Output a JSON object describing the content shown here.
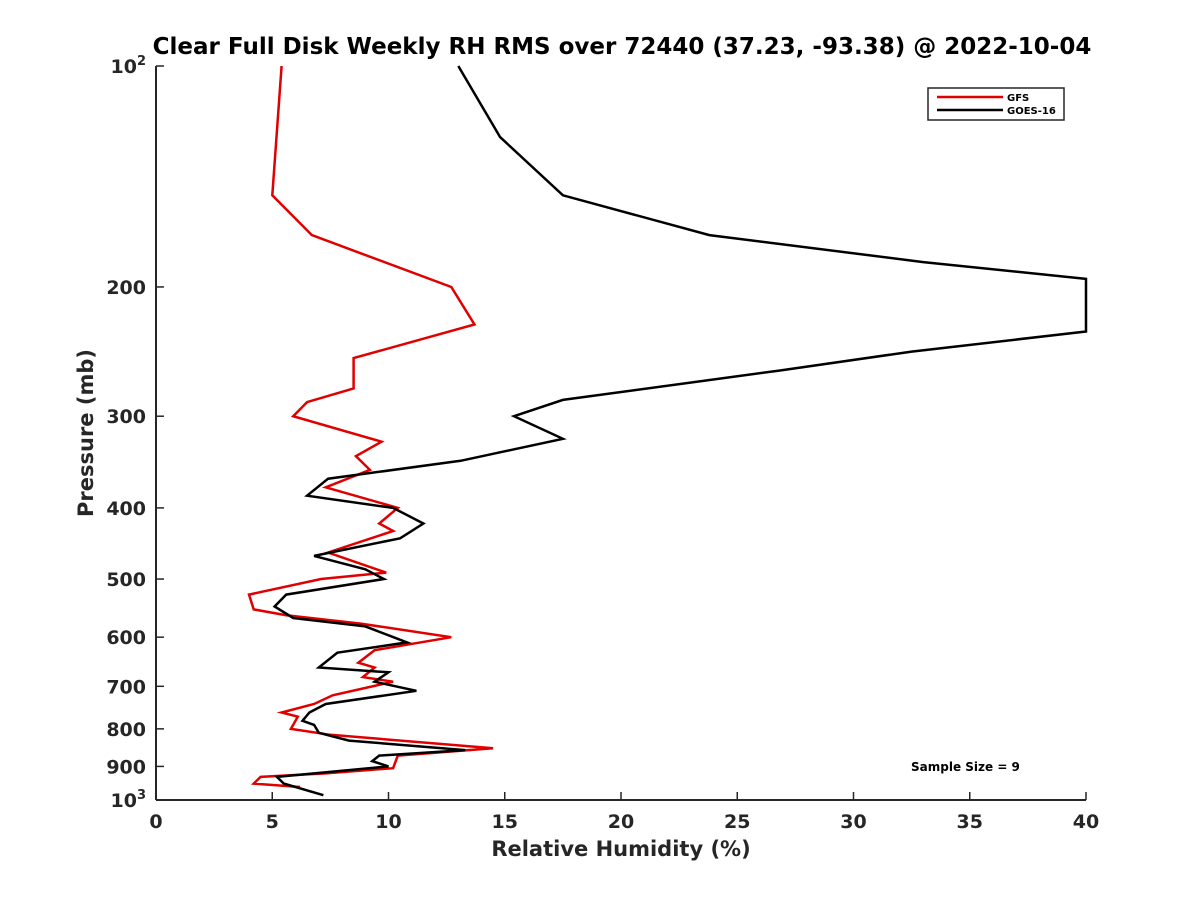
{
  "chart_data": {
    "type": "line",
    "title": "Clear Full Disk Weekly RH RMS over 72440 (37.23, -93.38) @ 2022-10-04",
    "xlabel": "Relative Humidity (%)",
    "ylabel": "Pressure (mb)",
    "xlim": [
      0,
      40
    ],
    "ylim": [
      100,
      1000
    ],
    "y_scale": "log",
    "y_reversed": true,
    "grid": false,
    "legend_position": "top-right",
    "x_ticks": [
      "0",
      "5",
      "10",
      "15",
      "20",
      "25",
      "30",
      "35",
      "40"
    ],
    "y_ticks": [
      {
        "value": 100,
        "base": "10",
        "exp": "2"
      },
      {
        "value": 200,
        "label": "200"
      },
      {
        "value": 300,
        "label": "300"
      },
      {
        "value": 400,
        "label": "400"
      },
      {
        "value": 500,
        "label": "500"
      },
      {
        "value": 600,
        "label": "600"
      },
      {
        "value": 700,
        "label": "700"
      },
      {
        "value": 800,
        "label": "800"
      },
      {
        "value": 900,
        "label": "900"
      },
      {
        "value": 1000,
        "base": "10",
        "exp": "3"
      }
    ],
    "annotation": "Sample Size = 9",
    "series": [
      {
        "name": "GFS",
        "color": "#e00000",
        "points": [
          [
            5.4,
            100
          ],
          [
            5.0,
            150
          ],
          [
            6.7,
            170
          ],
          [
            12.7,
            200
          ],
          [
            13.7,
            225
          ],
          [
            8.5,
            250
          ],
          [
            8.5,
            275
          ],
          [
            6.5,
            287
          ],
          [
            5.9,
            300
          ],
          [
            9.7,
            325
          ],
          [
            8.6,
            340
          ],
          [
            9.2,
            355
          ],
          [
            7.3,
            375
          ],
          [
            10.4,
            400
          ],
          [
            9.6,
            420
          ],
          [
            10.2,
            430
          ],
          [
            7.4,
            460
          ],
          [
            9.9,
            490
          ],
          [
            7.1,
            500
          ],
          [
            4.0,
            525
          ],
          [
            4.2,
            550
          ],
          [
            5.6,
            560
          ],
          [
            8.8,
            575
          ],
          [
            12.7,
            600
          ],
          [
            9.4,
            625
          ],
          [
            8.7,
            650
          ],
          [
            9.4,
            660
          ],
          [
            8.9,
            680
          ],
          [
            10.2,
            690
          ],
          [
            7.6,
            720
          ],
          [
            6.8,
            740
          ],
          [
            5.4,
            760
          ],
          [
            6.1,
            770
          ],
          [
            5.8,
            800
          ],
          [
            7.5,
            815
          ],
          [
            14.5,
            850
          ],
          [
            10.4,
            870
          ],
          [
            10.2,
            905
          ],
          [
            7.3,
            920
          ],
          [
            4.5,
            930
          ],
          [
            4.2,
            950
          ],
          [
            6.2,
            960
          ]
        ]
      },
      {
        "name": "GOES-16",
        "color": "#000000",
        "points": [
          [
            13.0,
            100
          ],
          [
            14.8,
            125
          ],
          [
            17.5,
            150
          ],
          [
            23.8,
            170
          ],
          [
            33.0,
            185
          ],
          [
            40.0,
            195
          ],
          [
            40.0,
            230
          ],
          [
            32.5,
            245
          ],
          [
            26.8,
            260
          ],
          [
            17.5,
            285
          ],
          [
            15.4,
            300
          ],
          [
            17.5,
            322
          ],
          [
            13.1,
            345
          ],
          [
            7.4,
            365
          ],
          [
            6.5,
            385
          ],
          [
            10.2,
            400
          ],
          [
            11.5,
            420
          ],
          [
            10.5,
            440
          ],
          [
            6.8,
            465
          ],
          [
            9.0,
            485
          ],
          [
            9.8,
            500
          ],
          [
            5.6,
            525
          ],
          [
            5.1,
            545
          ],
          [
            5.9,
            565
          ],
          [
            9.0,
            580
          ],
          [
            10.8,
            610
          ],
          [
            7.8,
            630
          ],
          [
            7.0,
            660
          ],
          [
            10.0,
            670
          ],
          [
            9.4,
            690
          ],
          [
            11.2,
            710
          ],
          [
            7.3,
            740
          ],
          [
            6.6,
            760
          ],
          [
            6.3,
            780
          ],
          [
            6.8,
            790
          ],
          [
            7.0,
            810
          ],
          [
            8.3,
            830
          ],
          [
            13.3,
            855
          ],
          [
            9.6,
            870
          ],
          [
            9.3,
            885
          ],
          [
            10.0,
            900
          ],
          [
            5.2,
            930
          ],
          [
            5.5,
            950
          ],
          [
            7.2,
            985
          ]
        ]
      }
    ]
  }
}
